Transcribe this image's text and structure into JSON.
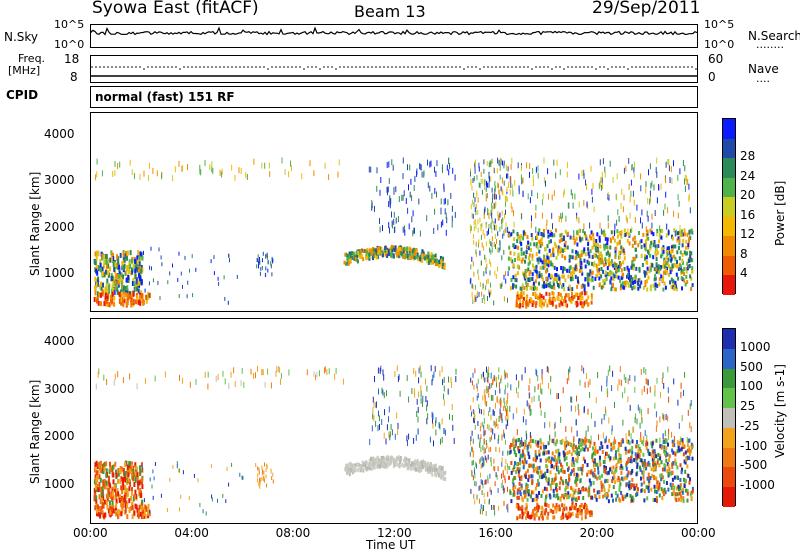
{
  "header": {
    "title": "Syowa East (fitACF)",
    "beam": "Beam 13",
    "date": "29/Sep/2011"
  },
  "noise_panel": {
    "left_label": "N.Sky",
    "right_label": "N.Search",
    "left_ticks": [
      "10^5",
      "10^0"
    ],
    "right_ticks": [
      "10^5",
      "10^0"
    ],
    "right_dots": "........"
  },
  "freq_panel": {
    "left_label_line1": "Freq.",
    "left_label_line2": "[MHz]",
    "left_ticks": [
      "18",
      "8"
    ],
    "right_label": "Nave",
    "right_ticks": [
      "60",
      "0"
    ],
    "right_dots": "...."
  },
  "cpid": {
    "label": "CPID",
    "value": "normal (fast) 151 RF"
  },
  "chart_data": [
    {
      "type": "heatmap",
      "ylabel": "Slant Range [km]",
      "xlabel": "Time UT",
      "ylim": [
        180,
        4500
      ],
      "yticks": [
        "1000",
        "2000",
        "3000",
        "4000"
      ],
      "xticks": [
        "00:00",
        "04:00",
        "08:00",
        "12:00",
        "16:00",
        "20:00",
        "00:00"
      ],
      "colorbar": {
        "label": "Power [dB]",
        "ticks": [
          "4",
          "8",
          "12",
          "16",
          "20",
          "24",
          "28"
        ],
        "colors": [
          "#0a1cff",
          "#1f4aa8",
          "#2b8a57",
          "#4db34a",
          "#c9cc22",
          "#f5b800",
          "#f28a00",
          "#ef5b00",
          "#e8170b"
        ]
      }
    },
    {
      "type": "heatmap",
      "ylabel": "Slant Range [km]",
      "xlabel": "Time UT",
      "ylim": [
        180,
        4500
      ],
      "yticks": [
        "1000",
        "2000",
        "3000",
        "4000"
      ],
      "xticks": [
        "00:00",
        "04:00",
        "08:00",
        "12:00",
        "16:00",
        "20:00",
        "00:00"
      ],
      "colorbar": {
        "label": "Velocity [m s-1]",
        "ticks": [
          "1000",
          "500",
          "100",
          "25",
          "-25",
          "-100",
          "-500",
          "-1000"
        ],
        "colors": [
          "#1d2fae",
          "#2a66c8",
          "#3a9a3b",
          "#62c24a",
          "#c0c0b8",
          "#f3a31b",
          "#f07a12",
          "#ea4b0c",
          "#e51a06"
        ]
      }
    }
  ],
  "xaxis": {
    "label": "Time UT"
  }
}
